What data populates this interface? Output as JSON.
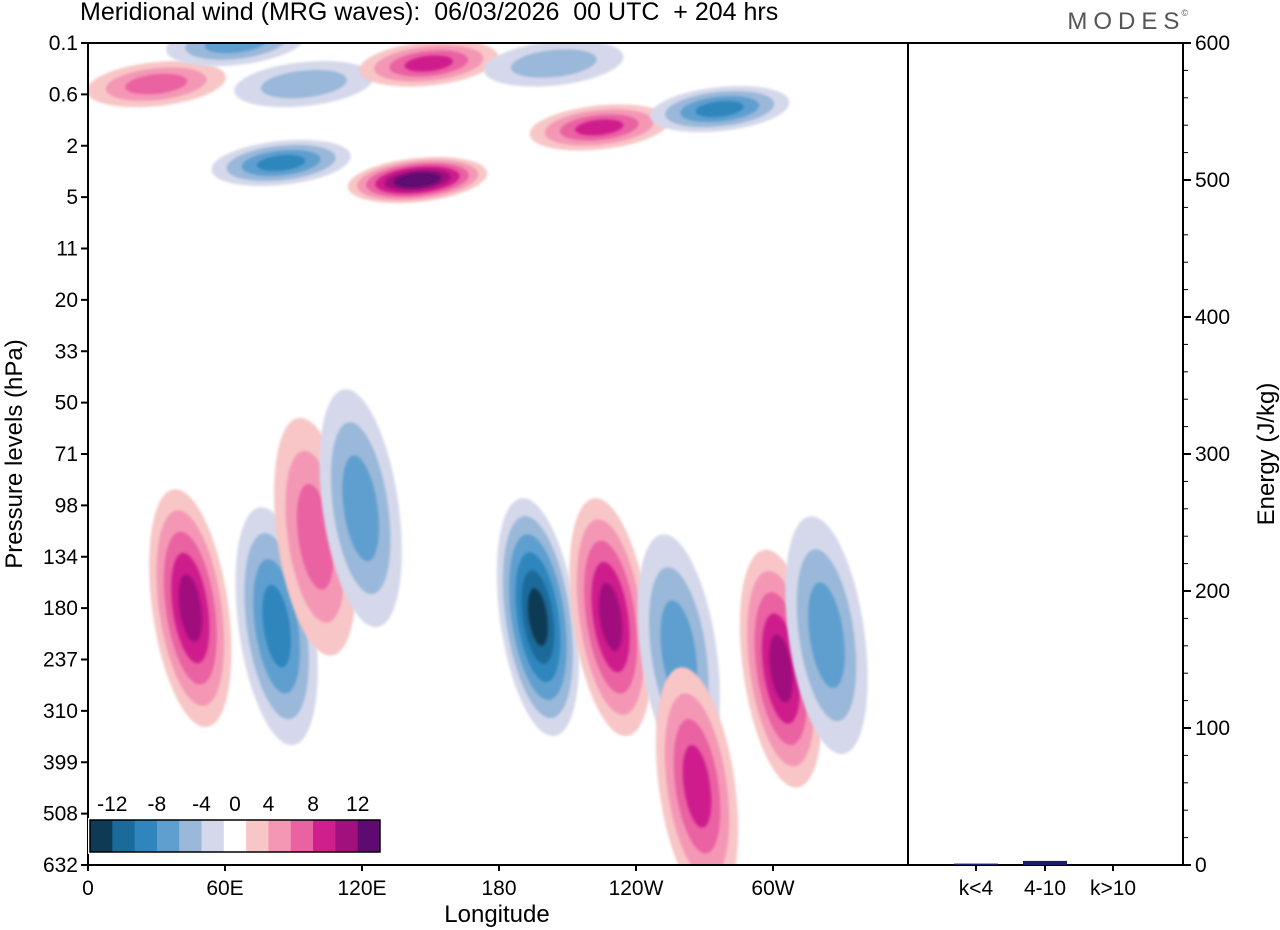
{
  "title": "Meridional wind (MRG waves):  06/03/2026  00 UTC  + 204 hrs",
  "logo": "MODES",
  "chart_data": [
    {
      "type": "heatmap",
      "title": "Meridional wind (MRG waves)",
      "xlabel": "Longitude",
      "ylabel": "Pressure levels (hPa)",
      "x_ticks": [
        "0",
        "60E",
        "120E",
        "180",
        "120W",
        "60W"
      ],
      "y_ticks": [
        "0.1",
        "0.6",
        "2",
        "5",
        "11",
        "20",
        "33",
        "50",
        "71",
        "98",
        "134",
        "180",
        "237",
        "310",
        "399",
        "508",
        "632"
      ],
      "colorbar": {
        "labels": [
          "-12",
          "-8",
          "-4",
          "0",
          "4",
          "8",
          "12"
        ],
        "levels": [
          -14,
          -12,
          -10,
          -8,
          -6,
          -4,
          -2,
          2,
          4,
          6,
          8,
          10,
          12,
          14
        ],
        "colors": [
          "#0f3a55",
          "#1a6a9a",
          "#2f86bd",
          "#5f9fcf",
          "#9ab8d9",
          "#d4d8ea",
          "#ffffff",
          "#f8c6c6",
          "#f497b5",
          "#ea62a2",
          "#cf1f8d",
          "#a2107e",
          "#5e0a70"
        ]
      },
      "features": [
        {
          "lon": 30,
          "level": 0.5,
          "value": 7
        },
        {
          "lon": 65,
          "level": 0.1,
          "value": -6
        },
        {
          "lon": 95,
          "level": 0.5,
          "value": -5
        },
        {
          "lon": 85,
          "level": 3,
          "value": -8
        },
        {
          "lon": 150,
          "level": 0.3,
          "value": 9
        },
        {
          "lon": 145,
          "level": 4,
          "value": 15
        },
        {
          "lon": 205,
          "level": 0.3,
          "value": -4
        },
        {
          "lon": 225,
          "level": 1.5,
          "value": 8
        },
        {
          "lon": 278,
          "level": 1,
          "value": -9
        },
        {
          "lon": 45,
          "level": 180,
          "value": 10
        },
        {
          "lon": 83,
          "level": 200,
          "value": -9
        },
        {
          "lon": 100,
          "level": 120,
          "value": 6
        },
        {
          "lon": 120,
          "level": 100,
          "value": -6
        },
        {
          "lon": 198,
          "level": 190,
          "value": -13
        },
        {
          "lon": 230,
          "level": 190,
          "value": 11
        },
        {
          "lon": 260,
          "level": 230,
          "value": -7
        },
        {
          "lon": 268,
          "level": 450,
          "value": 9
        },
        {
          "lon": 305,
          "level": 250,
          "value": 10
        },
        {
          "lon": 325,
          "level": 210,
          "value": -7
        }
      ]
    },
    {
      "type": "bar",
      "categories": [
        "k<4",
        "4-10",
        "k>10"
      ],
      "values": [
        1,
        3,
        0
      ],
      "ylabel": "Energy (J/kg)",
      "ylim": [
        0,
        600
      ],
      "y_ticks": [
        "0",
        "100",
        "200",
        "300",
        "400",
        "500",
        "600"
      ]
    }
  ]
}
